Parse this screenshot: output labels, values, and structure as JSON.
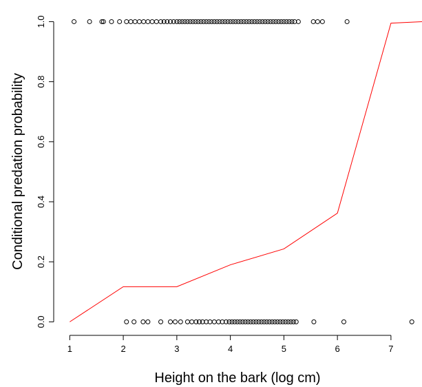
{
  "chart_data": {
    "type": "scatter",
    "x_label": "Height on the bark (log cm)",
    "y_label": "Conditional predation probability",
    "xlim": [
      0.7,
      7.58
    ],
    "ylim": [
      -0.045,
      1.04
    ],
    "xticks": [
      1,
      2,
      3,
      4,
      5,
      6,
      7
    ],
    "yticks": [
      {
        "value": 0,
        "label": "0.0"
      },
      {
        "value": 0.2,
        "label": "0.2"
      },
      {
        "value": 0.4,
        "label": "0.4"
      },
      {
        "value": 0.6,
        "label": "0.6"
      },
      {
        "value": 0.8,
        "label": "0.8"
      },
      {
        "value": 1,
        "label": "1.0"
      }
    ],
    "series": [
      {
        "type": "scatter",
        "color": "#000000",
        "x": [
          1.08,
          1.37,
          1.6,
          1.63,
          1.78,
          1.93,
          2.06,
          2.14,
          2.22,
          2.3,
          2.38,
          2.46,
          2.54,
          2.62,
          2.7,
          2.76,
          2.82,
          2.88,
          2.94,
          3.0,
          3.05,
          3.1,
          3.15,
          3.2,
          3.25,
          3.3,
          3.35,
          3.4,
          3.45,
          3.5,
          3.55,
          3.6,
          3.65,
          3.7,
          3.75,
          3.8,
          3.85,
          3.9,
          3.95,
          4.0,
          4.05,
          4.1,
          4.15,
          4.2,
          4.25,
          4.3,
          4.35,
          4.4,
          4.45,
          4.5,
          4.55,
          4.6,
          4.65,
          4.7,
          4.75,
          4.8,
          4.85,
          4.9,
          4.95,
          5.0,
          5.05,
          5.1,
          5.15,
          5.2,
          5.27,
          5.55,
          5.63,
          5.72,
          6.18
        ],
        "values": [
          1,
          1,
          1,
          1,
          1,
          1,
          1,
          1,
          1,
          1,
          1,
          1,
          1,
          1,
          1,
          1,
          1,
          1,
          1,
          1,
          1,
          1,
          1,
          1,
          1,
          1,
          1,
          1,
          1,
          1,
          1,
          1,
          1,
          1,
          1,
          1,
          1,
          1,
          1,
          1,
          1,
          1,
          1,
          1,
          1,
          1,
          1,
          1,
          1,
          1,
          1,
          1,
          1,
          1,
          1,
          1,
          1,
          1,
          1,
          1,
          1,
          1,
          1,
          1,
          1,
          1,
          1,
          1,
          1
        ]
      },
      {
        "type": "scatter",
        "color": "#000000",
        "x": [
          2.06,
          2.2,
          2.37,
          2.46,
          2.7,
          2.88,
          2.97,
          3.07,
          3.2,
          3.28,
          3.36,
          3.42,
          3.48,
          3.55,
          3.62,
          3.7,
          3.78,
          3.85,
          3.92,
          3.98,
          4.03,
          4.08,
          4.13,
          4.18,
          4.23,
          4.28,
          4.33,
          4.38,
          4.43,
          4.48,
          4.53,
          4.58,
          4.63,
          4.68,
          4.73,
          4.78,
          4.83,
          4.88,
          4.93,
          4.98,
          5.03,
          5.08,
          5.13,
          5.18,
          5.23,
          5.56,
          6.12,
          7.39
        ],
        "values": [
          0,
          0,
          0,
          0,
          0,
          0,
          0,
          0,
          0,
          0,
          0,
          0,
          0,
          0,
          0,
          0,
          0,
          0,
          0,
          0,
          0,
          0,
          0,
          0,
          0,
          0,
          0,
          0,
          0,
          0,
          0,
          0,
          0,
          0,
          0,
          0,
          0,
          0,
          0,
          0,
          0,
          0,
          0,
          0,
          0,
          0,
          0,
          0
        ]
      },
      {
        "type": "line",
        "color": "#ff0000",
        "x": [
          1,
          2,
          3,
          4,
          5,
          6,
          7,
          7.58
        ],
        "values": [
          0,
          0.117,
          0.117,
          0.19,
          0.243,
          0.362,
          0.995,
          1.0
        ]
      }
    ]
  }
}
